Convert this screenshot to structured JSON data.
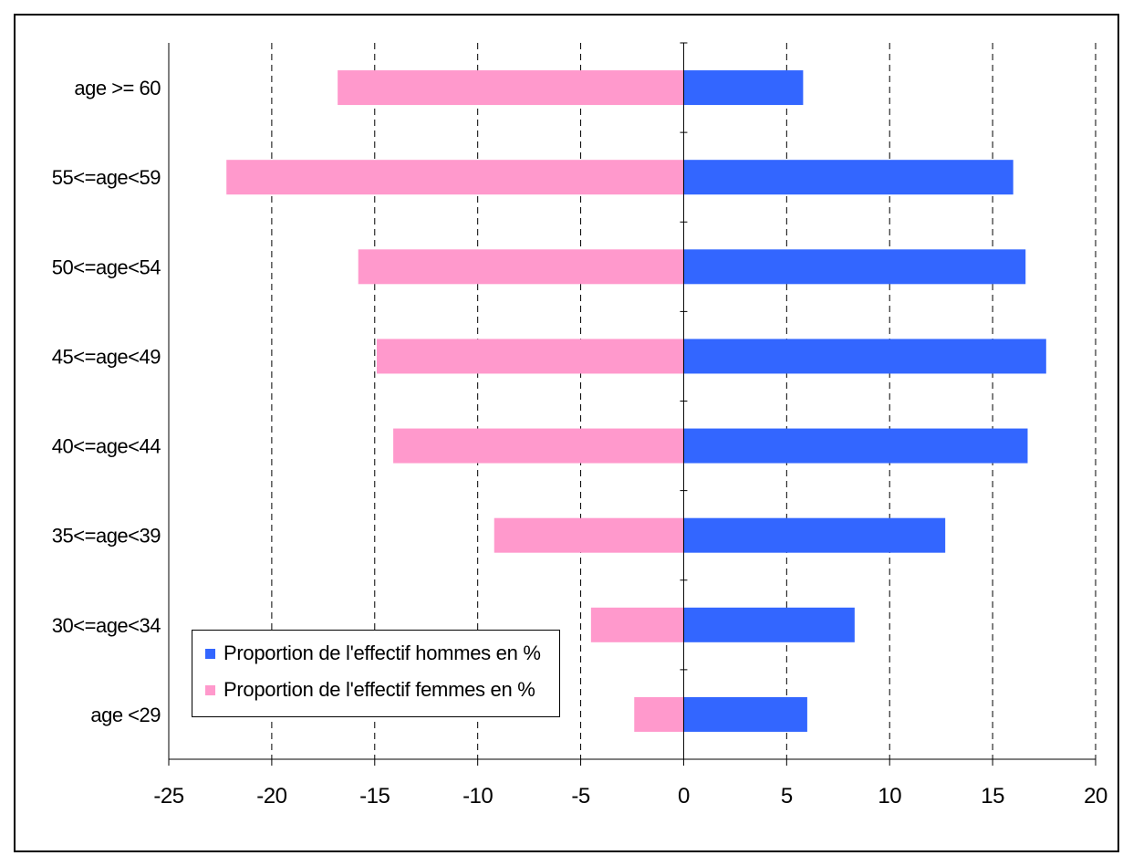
{
  "chart_data": {
    "type": "bar",
    "orientation": "horizontal",
    "title": "",
    "xlabel": "",
    "ylabel": "",
    "categories": [
      "age >= 60",
      "55<=age<59",
      "50<=age<54",
      "45<=age<49",
      "40<=age<44",
      "35<=age<39",
      "30<=age<34",
      "age <29"
    ],
    "series": [
      {
        "name": "Proportion de l'effectif hommes en %",
        "color": "#3366ff",
        "values": [
          5.8,
          16.0,
          16.6,
          17.6,
          16.7,
          12.7,
          8.3,
          6.0
        ]
      },
      {
        "name": "Proportion de l'effectif femmes en %",
        "color": "#ff99cc",
        "values": [
          -16.8,
          -22.2,
          -15.8,
          -14.9,
          -14.1,
          -9.2,
          -4.5,
          -2.4
        ]
      }
    ],
    "xlim": [
      -25,
      20
    ],
    "xticks": [
      "-25",
      "-20",
      "-15",
      "-10",
      "-5",
      "0",
      "5",
      "10",
      "15",
      "20"
    ],
    "grid": "vertical dashed",
    "legend_position": "bottom-left"
  }
}
